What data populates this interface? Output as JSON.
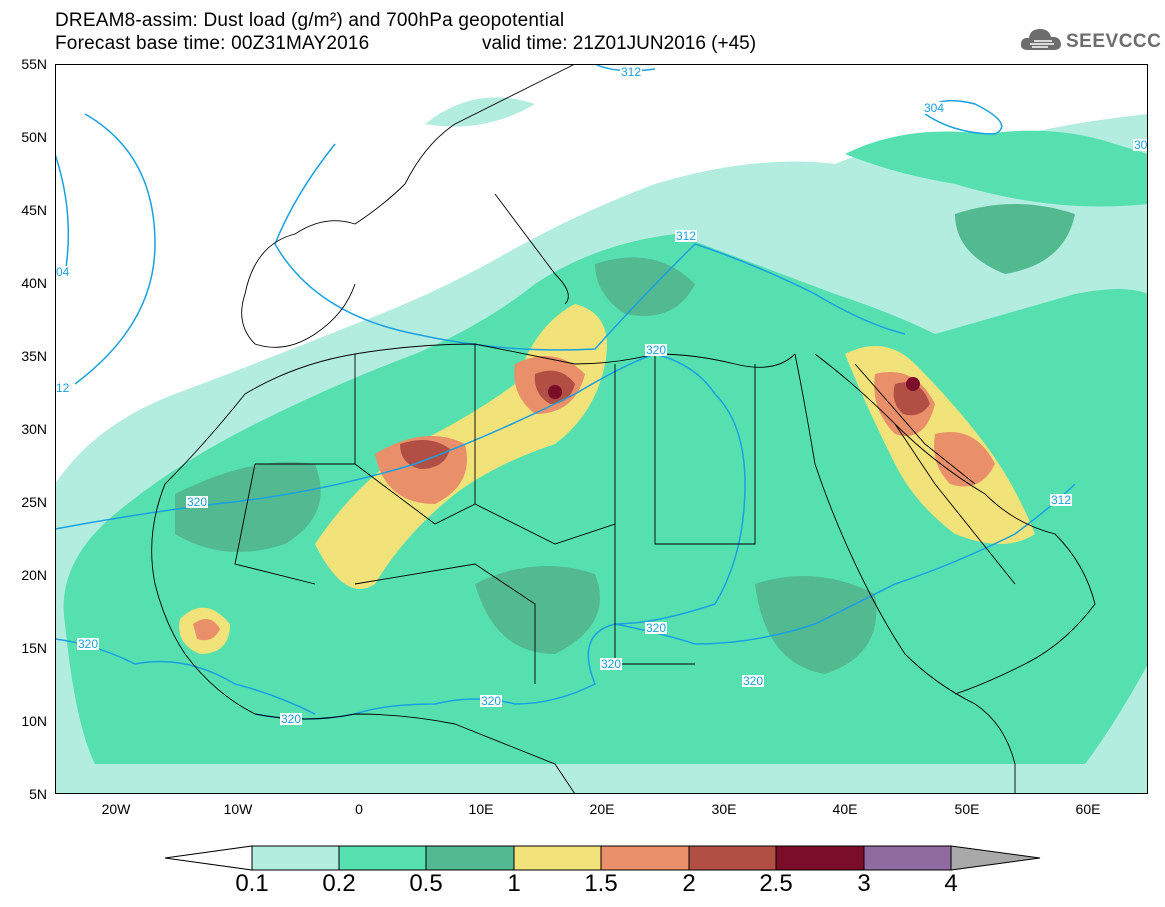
{
  "header": {
    "title_line1": "DREAM8-assim: Dust load (g/m²) and 700hPa geopotential",
    "title_line2": "Forecast base time: 00Z31MAY2016",
    "valid_time": "valid time: 21Z01JUN2016 (+45)",
    "logo_text": "SEEVCCC"
  },
  "axes": {
    "lat_labels": [
      "55N",
      "50N",
      "45N",
      "40N",
      "35N",
      "30N",
      "25N",
      "20N",
      "15N",
      "10N",
      "5N"
    ],
    "lon_labels": [
      "20W",
      "10W",
      "0",
      "10E",
      "20E",
      "30E",
      "40E",
      "50E",
      "60E"
    ]
  },
  "contour_labels": [
    {
      "text": "312",
      "id": "c1"
    },
    {
      "text": "304",
      "id": "c2"
    },
    {
      "text": "30",
      "id": "c3"
    },
    {
      "text": "312",
      "id": "c4"
    },
    {
      "text": "04",
      "id": "c5"
    },
    {
      "text": "320",
      "id": "c6"
    },
    {
      "text": "12",
      "id": "c7"
    },
    {
      "text": "320",
      "id": "c8"
    },
    {
      "text": "312",
      "id": "c9"
    },
    {
      "text": "320",
      "id": "c10"
    },
    {
      "text": "320",
      "id": "c11"
    },
    {
      "text": "320",
      "id": "c12"
    },
    {
      "text": "320",
      "id": "c13"
    },
    {
      "text": "320",
      "id": "c14"
    },
    {
      "text": "320",
      "id": "c15"
    }
  ],
  "colorbar": {
    "levels": [
      "0.1",
      "0.2",
      "0.5",
      "1",
      "1.5",
      "2",
      "2.5",
      "3",
      "4"
    ],
    "colors": [
      "#b3ede0",
      "#56e0b0",
      "#52b990",
      "#f2e27a",
      "#e9906a",
      "#b24f45",
      "#7c0d2a",
      "#8f6ba0"
    ],
    "end_colors": {
      "low": "#ffffff",
      "high": "#a9a9a9"
    }
  },
  "colors": {
    "dust_light": "#b3ede0",
    "dust_mid": "#56e0b0",
    "dust_dark": "#52b990",
    "dust_yellow": "#f2e27a",
    "dust_orange": "#e9906a",
    "dust_brown": "#b24f45",
    "dust_maroon": "#7c0d2a",
    "contour": "#1aa0e0"
  }
}
